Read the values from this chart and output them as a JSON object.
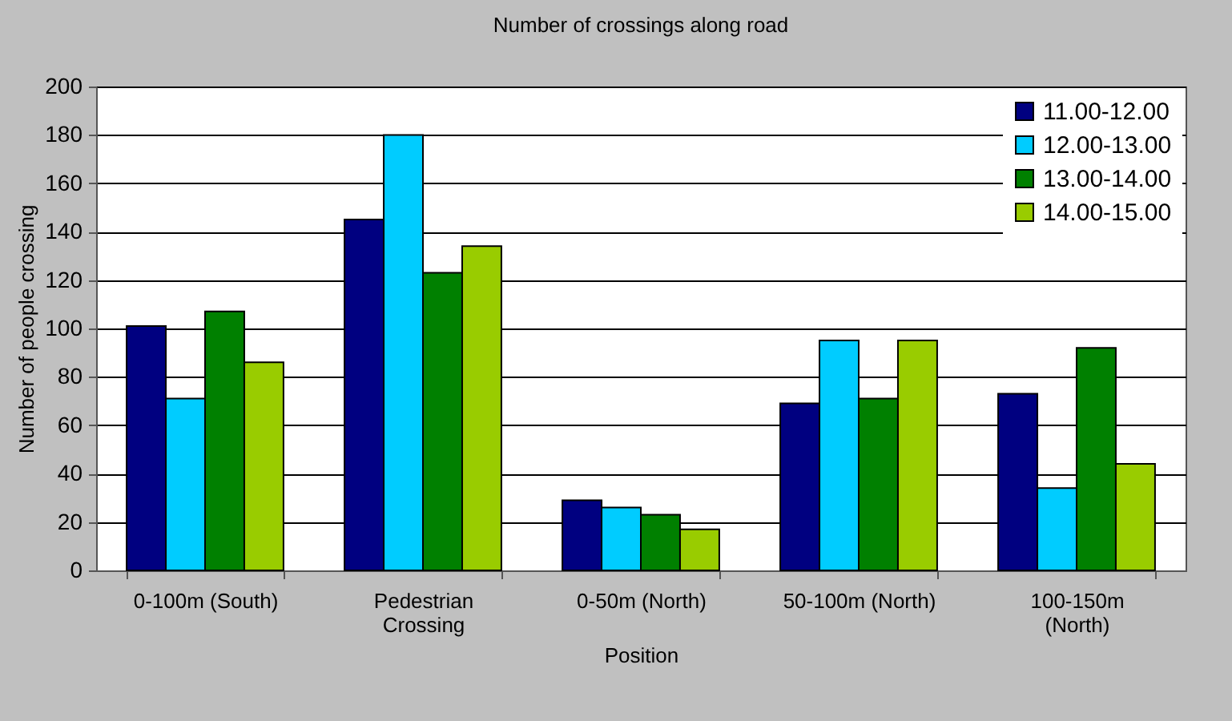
{
  "chart_data": {
    "type": "bar",
    "title": "Number of crossings along road",
    "xlabel": "Position",
    "ylabel": "Number of people crossing",
    "categories": [
      "0-100m (South)",
      "Pedestrian Crossing",
      "0-50m (North)",
      "50-100m (North)",
      "100-150m (North)"
    ],
    "series": [
      {
        "name": "11.00-12.00",
        "color": "#000080",
        "values": [
          101,
          145,
          29,
          69,
          73
        ]
      },
      {
        "name": "12.00-13.00",
        "color": "#00ccff",
        "values": [
          71,
          180,
          26,
          95,
          34
        ]
      },
      {
        "name": "13.00-14.00",
        "color": "#008000",
        "values": [
          107,
          123,
          23,
          71,
          92
        ]
      },
      {
        "name": "14.00-15.00",
        "color": "#99cc00",
        "values": [
          86,
          134,
          17,
          95,
          44
        ]
      }
    ],
    "ylim": [
      0,
      200
    ],
    "yticks": [
      0,
      20,
      40,
      60,
      80,
      100,
      120,
      140,
      160,
      180,
      200
    ],
    "grid": "y",
    "legend": "top right"
  }
}
